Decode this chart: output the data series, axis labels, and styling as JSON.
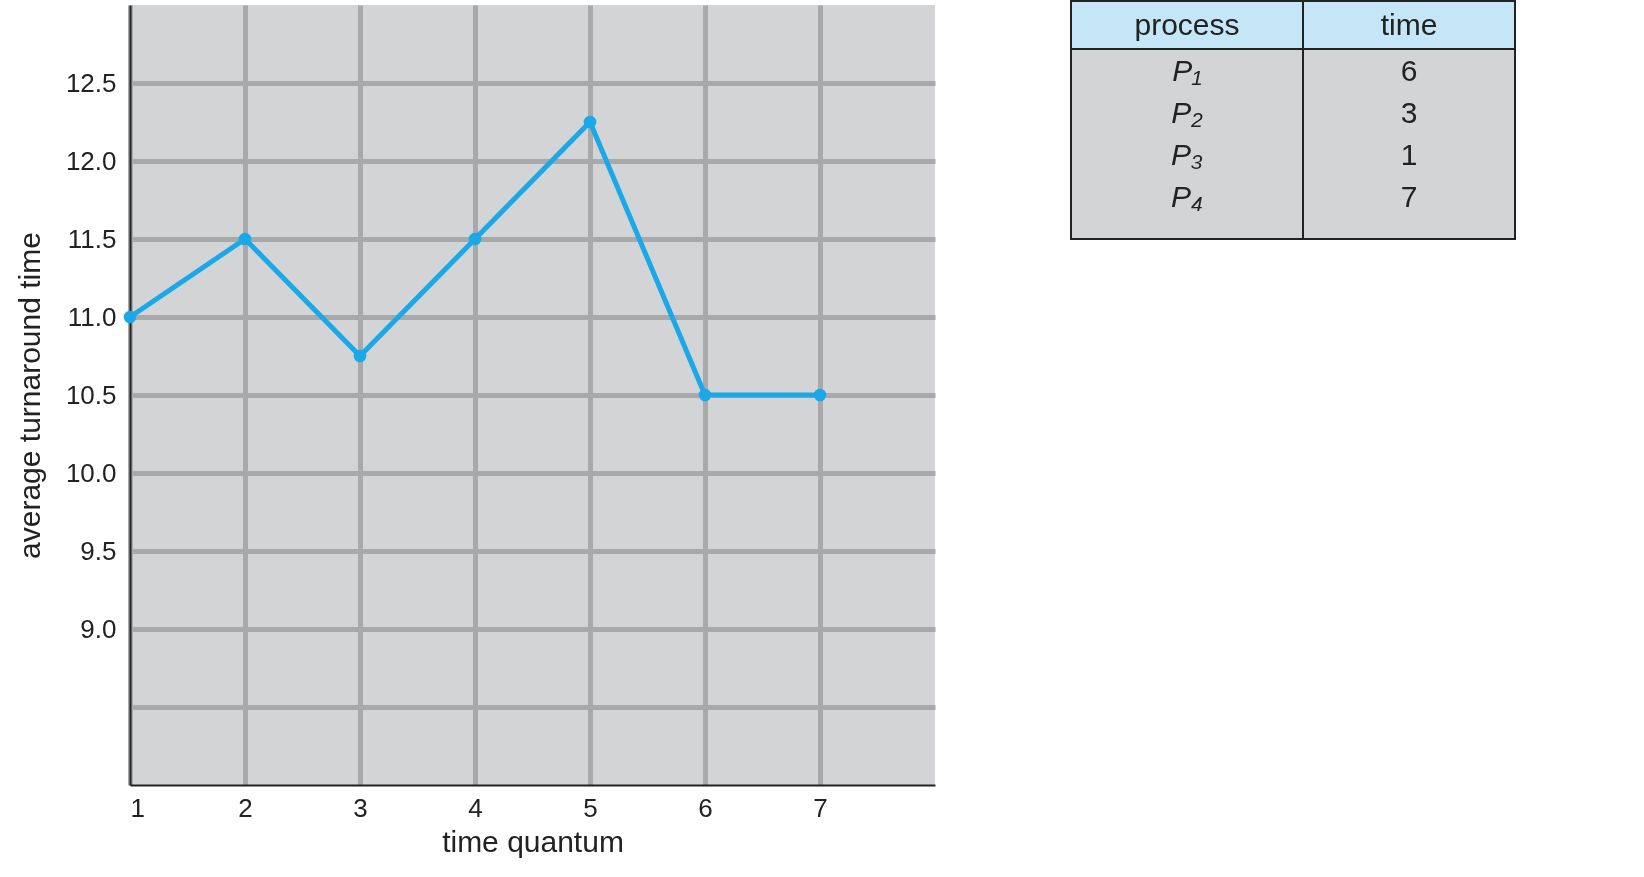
{
  "chart_data": [
    {
      "type": "line",
      "xlabel": "time quantum",
      "ylabel": "average turnaround time",
      "x": [
        1,
        2,
        3,
        4,
        5,
        6,
        7
      ],
      "series": [
        {
          "color": "#1ba8e8",
          "values": [
            11,
            11.5,
            10.75,
            11.5,
            12.25,
            10.5,
            10.5
          ]
        }
      ],
      "xlim": [
        1,
        8
      ],
      "xticks": [
        1,
        2,
        3,
        4,
        5,
        6,
        7
      ],
      "ylim": [
        8,
        13
      ],
      "yticks": [
        {
          "value": 8.5,
          "label": null
        },
        {
          "value": 9,
          "label": "9.0"
        },
        9.5,
        {
          "value": 10,
          "label": "10.0"
        },
        10.5,
        {
          "value": 11,
          "label": "11.0"
        },
        11.5,
        {
          "value": 12,
          "label": "12.0"
        },
        12.5
      ],
      "grid": true,
      "marker": "circle",
      "line_style": "solid",
      "legend": false
    },
    {
      "type": "other",
      "xlabel": "process",
      "ylabel": "time",
      "categories": [
        "P₁",
        "P₂",
        "P₃",
        "P₄"
      ],
      "values": [
        6,
        3,
        1,
        7
      ],
      "data_labels": true
    }
  ]
}
